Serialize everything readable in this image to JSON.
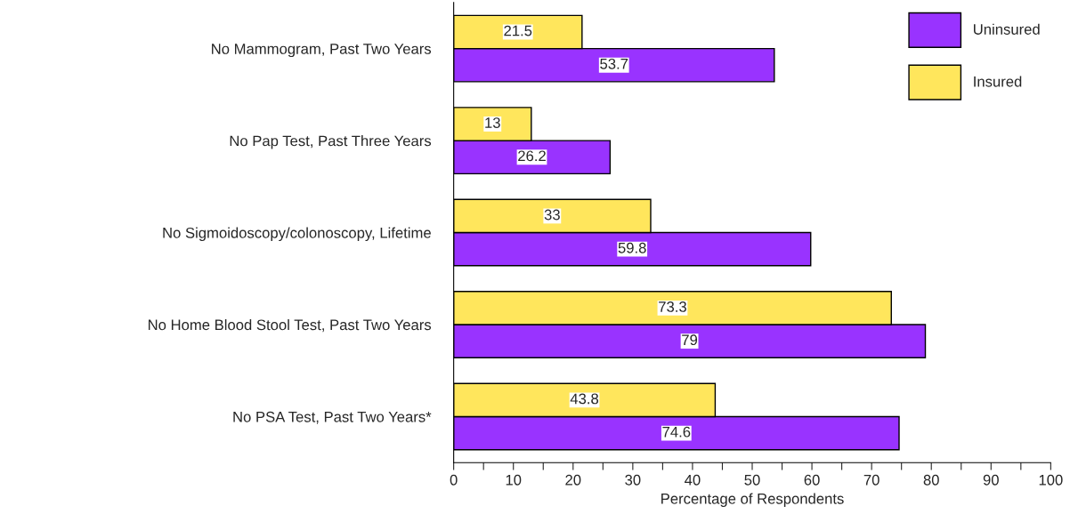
{
  "chart_data": {
    "type": "bar",
    "orientation": "horizontal",
    "xlabel": "Percentage of Respondents",
    "categories": [
      "No Mammogram, Past Two Years",
      "No Pap Test, Past Three Years",
      "No Sigmoidoscopy/colonoscopy, Lifetime",
      "No Home Blood Stool Test, Past Two Years",
      "No PSA Test, Past Two Years*"
    ],
    "series": [
      {
        "name": "Uninsured",
        "color": "#9933ff",
        "values": [
          53.7,
          26.2,
          59.8,
          79,
          74.6
        ]
      },
      {
        "name": "Insured",
        "color": "#ffe65c",
        "values": [
          21.5,
          13,
          33,
          73.3,
          43.8
        ]
      }
    ],
    "xlim": [
      0,
      100
    ],
    "xticks": [
      0,
      {
        "value": 5,
        "label": null
      },
      10,
      {
        "value": 15,
        "label": null
      },
      20,
      {
        "value": 25,
        "label": null
      },
      30,
      {
        "value": 35,
        "label": null
      },
      40,
      {
        "value": 45,
        "label": null
      },
      50,
      {
        "value": 55,
        "label": null
      },
      60,
      {
        "value": 65,
        "label": null
      },
      70,
      {
        "value": 75,
        "label": null
      },
      80,
      {
        "value": 85,
        "label": null
      },
      90,
      {
        "value": 95,
        "label": null
      },
      100
    ],
    "data_labels": true,
    "grid": false,
    "legend": "top right"
  }
}
